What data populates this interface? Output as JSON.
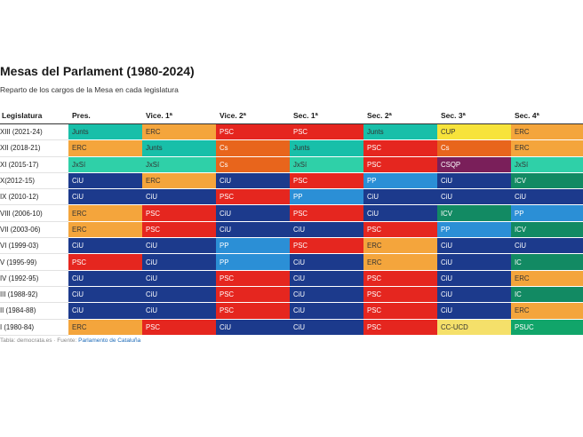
{
  "title": "Mesas del Parlament (1980-2024)",
  "subtitle": "Reparto de los cargos de la Mesa en cada legislatura",
  "footer": {
    "prefix": "Tabla: democrata.es · Fuente: ",
    "source": "Parlamento de Cataluña"
  },
  "chart_data": {
    "type": "table",
    "title": "Mesas del Parlament (1980-2024)",
    "columns": [
      "Legislatura",
      "Pres.",
      "Vice. 1ª",
      "Vice. 2ª",
      "Sec. 1ª",
      "Sec. 2ª",
      "Sec. 3ª",
      "Sec. 4ª"
    ],
    "rows": [
      {
        "legislatura": "XIII (2021-24)",
        "cells": [
          "Junts",
          "ERC",
          "PSC",
          "PSC",
          "Junts",
          "CUP",
          "ERC"
        ]
      },
      {
        "legislatura": "XII (2018-21)",
        "cells": [
          "ERC",
          "Junts",
          "Cs",
          "Junts",
          "PSC",
          "Cs",
          "ERC"
        ]
      },
      {
        "legislatura": "XI (2015-17)",
        "cells": [
          "JxSí",
          "JxSí",
          "Cs",
          "JxSí",
          "PSC",
          "CSQP",
          "JxSí"
        ]
      },
      {
        "legislatura": "X(2012-15)",
        "cells": [
          "CiU",
          "ERC",
          "CiU",
          "PSC",
          "PP",
          "CiU",
          "ICV"
        ]
      },
      {
        "legislatura": "IX (2010-12)",
        "cells": [
          "CiU",
          "CiU",
          "PSC",
          "PP",
          "CiU",
          "CiU",
          "CiU"
        ]
      },
      {
        "legislatura": "VIII (2006-10)",
        "cells": [
          "ERC",
          "PSC",
          "CiU",
          "PSC",
          "CiU",
          "ICV",
          "PP"
        ]
      },
      {
        "legislatura": "VII (2003-06)",
        "cells": [
          "ERC",
          "PSC",
          "CiU",
          "CiU",
          "PSC",
          "PP",
          "ICV"
        ]
      },
      {
        "legislatura": "VI (1999-03)",
        "cells": [
          "CiU",
          "CiU",
          "PP",
          "PSC",
          "ERC",
          "CiU",
          "CiU"
        ]
      },
      {
        "legislatura": "V (1995-99)",
        "cells": [
          "PSC",
          "CiU",
          "PP",
          "CiU",
          "ERC",
          "CiU",
          "IC"
        ]
      },
      {
        "legislatura": "IV (1992-95)",
        "cells": [
          "CiU",
          "CiU",
          "PSC",
          "CiU",
          "PSC",
          "CiU",
          "ERC"
        ]
      },
      {
        "legislatura": "III (1988-92)",
        "cells": [
          "CiU",
          "CiU",
          "PSC",
          "CiU",
          "PSC",
          "CiU",
          "IC"
        ]
      },
      {
        "legislatura": "II (1984-88)",
        "cells": [
          "CiU",
          "CiU",
          "PSC",
          "CiU",
          "PSC",
          "CiU",
          "ERC"
        ]
      },
      {
        "legislatura": "I (1980-84)",
        "cells": [
          "ERC",
          "PSC",
          "CiU",
          "CiU",
          "PSC",
          "CC-UCD",
          "PSUC"
        ]
      }
    ],
    "party_colors": {
      "Junts": "#18bfa9",
      "ERC": "#f4a53c",
      "PSC": "#e5261f",
      "Cs": "#e8651c",
      "JxSí": "#2fd0a8",
      "CiU": "#1c3a8c",
      "PP": "#2b8fd6",
      "CUP": "#f7e33b",
      "CSQP": "#7a1f5a",
      "ICV": "#128a63",
      "IC": "#128a63",
      "CC-UCD": "#f5e06a",
      "PSUC": "#11a56a"
    },
    "light_text_parties": [
      "PSC",
      "Cs",
      "CiU",
      "PP",
      "CSQP",
      "ICV",
      "IC",
      "PSUC"
    ]
  }
}
